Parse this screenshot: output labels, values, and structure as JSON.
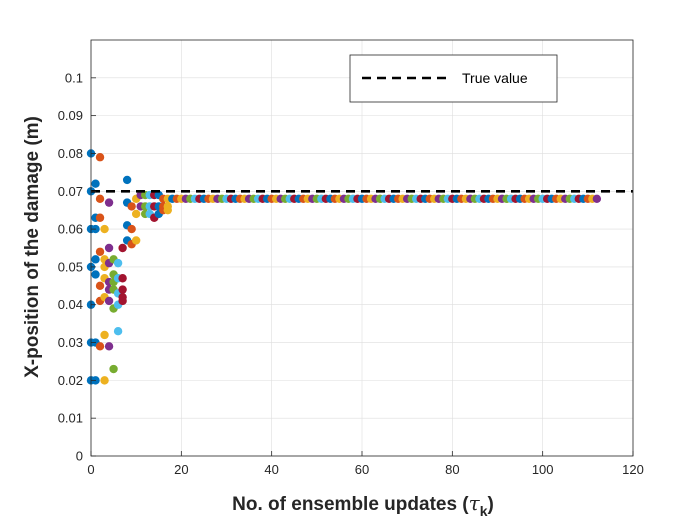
{
  "chart_data": {
    "type": "scatter",
    "title": "",
    "xlabel": "No. of ensemble updates (",
    "xlabel_symbol": "τ",
    "xlabel_subscript": "k",
    "xlabel_close": ")",
    "ylabel": "X-position of the damage (m)",
    "xlim": [
      0,
      120
    ],
    "ylim": [
      0,
      0.11
    ],
    "xticks": [
      "0",
      "20",
      "40",
      "60",
      "80",
      "100",
      "120"
    ],
    "xtick_values": [
      0,
      20,
      40,
      60,
      80,
      100,
      120
    ],
    "yticks": [
      "0",
      "0.01",
      "0.02",
      "0.03",
      "0.04",
      "0.05",
      "0.06",
      "0.07",
      "0.08",
      "0.09",
      "0.1"
    ],
    "ytick_values": [
      0,
      0.01,
      0.02,
      0.03,
      0.04,
      0.05,
      0.06,
      0.07,
      0.08,
      0.09,
      0.1
    ],
    "grid": true,
    "legend": {
      "placement": "top-right",
      "entries": [
        "True value"
      ]
    },
    "true_value": {
      "name": "True value",
      "y": 0.07,
      "style": "dashed",
      "color": "#000000"
    },
    "series_colors": [
      "#0072BD",
      "#D95319",
      "#EDB120",
      "#7E2F8E",
      "#77AC30",
      "#4DBEEE",
      "#A2142F"
    ],
    "early_points": [
      [
        0,
        0.08,
        0
      ],
      [
        0,
        0.07,
        0
      ],
      [
        0,
        0.06,
        0
      ],
      [
        0,
        0.05,
        0
      ],
      [
        0,
        0.04,
        0
      ],
      [
        0,
        0.03,
        0
      ],
      [
        0,
        0.02,
        0
      ],
      [
        1,
        0.072,
        0
      ],
      [
        1,
        0.063,
        0
      ],
      [
        1,
        0.052,
        0
      ],
      [
        1,
        0.048,
        0
      ],
      [
        1,
        0.03,
        0
      ],
      [
        1,
        0.02,
        0
      ],
      [
        1,
        0.06,
        0
      ],
      [
        2,
        0.079,
        1
      ],
      [
        2,
        0.068,
        1
      ],
      [
        2,
        0.063,
        1
      ],
      [
        2,
        0.054,
        1
      ],
      [
        2,
        0.045,
        1
      ],
      [
        2,
        0.041,
        1
      ],
      [
        2,
        0.029,
        1
      ],
      [
        3,
        0.06,
        2
      ],
      [
        3,
        0.052,
        2
      ],
      [
        3,
        0.047,
        2
      ],
      [
        3,
        0.042,
        2
      ],
      [
        3,
        0.032,
        2
      ],
      [
        3,
        0.02,
        2
      ],
      [
        3,
        0.05,
        2
      ],
      [
        4,
        0.067,
        3
      ],
      [
        4,
        0.055,
        3
      ],
      [
        4,
        0.051,
        3
      ],
      [
        4,
        0.046,
        3
      ],
      [
        4,
        0.041,
        3
      ],
      [
        4,
        0.029,
        3
      ],
      [
        4,
        0.044,
        3
      ],
      [
        5,
        0.052,
        4
      ],
      [
        5,
        0.048,
        4
      ],
      [
        5,
        0.044,
        4
      ],
      [
        5,
        0.039,
        4
      ],
      [
        5,
        0.023,
        4
      ],
      [
        5,
        0.046,
        4
      ],
      [
        6,
        0.051,
        5
      ],
      [
        6,
        0.047,
        5
      ],
      [
        6,
        0.043,
        5
      ],
      [
        6,
        0.04,
        5
      ],
      [
        6,
        0.033,
        5
      ],
      [
        7,
        0.055,
        6
      ],
      [
        7,
        0.047,
        6
      ],
      [
        7,
        0.044,
        6
      ],
      [
        7,
        0.042,
        6
      ],
      [
        7,
        0.041,
        6
      ],
      [
        8,
        0.073,
        0
      ],
      [
        8,
        0.067,
        0
      ],
      [
        8,
        0.061,
        0
      ],
      [
        8,
        0.057,
        0
      ],
      [
        9,
        0.066,
        1
      ],
      [
        9,
        0.06,
        1
      ],
      [
        9,
        0.056,
        1
      ],
      [
        10,
        0.068,
        2
      ],
      [
        10,
        0.064,
        2
      ],
      [
        10,
        0.057,
        2
      ],
      [
        11,
        0.069,
        3
      ],
      [
        11,
        0.066,
        3
      ],
      [
        12,
        0.069,
        4
      ],
      [
        12,
        0.066,
        4
      ],
      [
        12,
        0.064,
        4
      ],
      [
        13,
        0.069,
        5
      ],
      [
        13,
        0.066,
        5
      ],
      [
        13,
        0.064,
        5
      ],
      [
        14,
        0.069,
        6
      ],
      [
        14,
        0.066,
        6
      ],
      [
        14,
        0.063,
        6
      ],
      [
        15,
        0.069,
        0
      ],
      [
        15,
        0.066,
        0
      ],
      [
        15,
        0.064,
        0
      ],
      [
        16,
        0.068,
        1
      ],
      [
        16,
        0.066,
        1
      ],
      [
        16,
        0.065,
        1
      ],
      [
        17,
        0.068,
        2
      ],
      [
        17,
        0.066,
        2
      ],
      [
        17,
        0.065,
        2
      ]
    ],
    "converged": {
      "x_start": 18,
      "x_end": 112,
      "y": 0.068
    }
  }
}
